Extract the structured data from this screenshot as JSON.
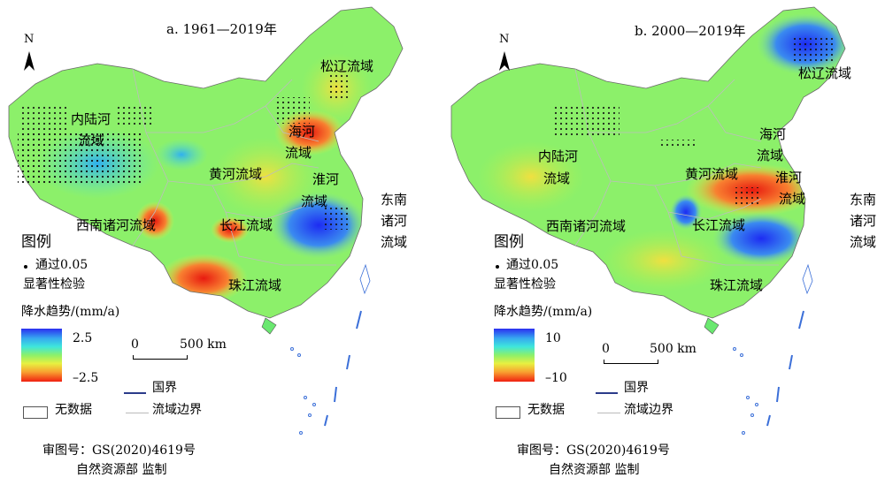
{
  "colors": {
    "positive": "#2a2ff0",
    "neutral": "#8cf06a",
    "negative": "#f02010",
    "basin_boundary": "#bbbbbb"
  },
  "panels": [
    {
      "title": "a. 1961—2019年",
      "north": "N",
      "basins": {
        "inland_1": "内陆河",
        "inland_2": "流域",
        "songliao": "松辽流域",
        "haihe_1": "海河",
        "haihe_2": "流域",
        "huanghe": "黄河流域",
        "huaihe_1": "淮河",
        "huaihe_2": "流域",
        "southwest": "西南诸河流域",
        "changjiang": "长江流域",
        "southeast_1": "东南",
        "southeast_2": "诸河",
        "southeast_3": "流域",
        "zhujiang": "珠江流域"
      },
      "legend": {
        "title": "图例",
        "sig_1": "通过0.05",
        "sig_2": "显著性检验",
        "trend_title": "降水趋势/(mm/a)",
        "max": "2.5",
        "min": "–2.5",
        "nodata": "无数据",
        "boundary": "国界",
        "basin_line": "流域边界"
      },
      "scale": {
        "zero": "0",
        "dist": "500 km"
      },
      "approval_1": "审图号：GS(2020)4619号",
      "approval_2": "自然资源部 监制"
    },
    {
      "title": "b. 2000—2019年",
      "north": "N",
      "basins": {
        "inland_1": "内陆河",
        "inland_2": "流域",
        "songliao": "松辽流域",
        "haihe_1": "海河",
        "haihe_2": "流域",
        "huanghe": "黄河流域",
        "huaihe_1": "淮河",
        "huaihe_2": "流域",
        "southwest": "西南诸河流域",
        "changjiang": "长江流域",
        "southeast_1": "东南",
        "southeast_2": "诸河",
        "southeast_3": "流域",
        "zhujiang": "珠江流域"
      },
      "legend": {
        "title": "图例",
        "sig_1": "通过0.05",
        "sig_2": "显著性检验",
        "trend_title": "降水趋势/(mm/a)",
        "max": "10",
        "min": "–10",
        "nodata": "无数据",
        "boundary": "国界",
        "basin_line": "流域边界"
      },
      "scale": {
        "zero": "0",
        "dist": "500 km"
      },
      "approval_1": "审图号：GS(2020)4619号",
      "approval_2": "自然资源部 监制"
    }
  ]
}
